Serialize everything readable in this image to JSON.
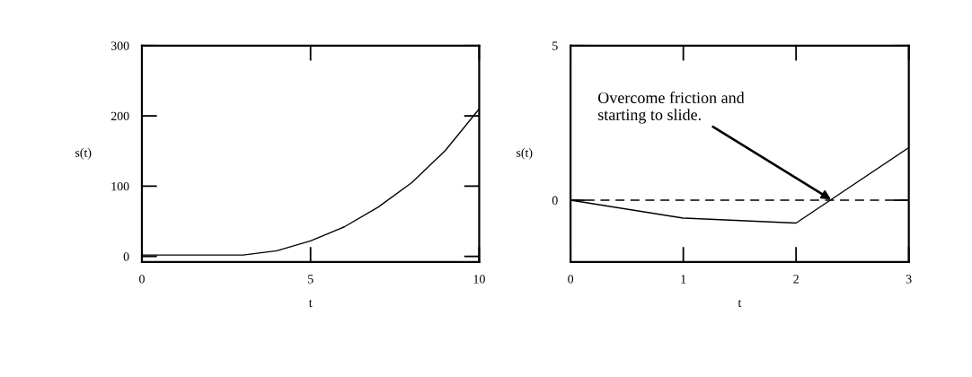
{
  "chart_data": [
    {
      "type": "line",
      "xlabel": "t",
      "ylabel": "s(t)",
      "x": [
        0,
        1,
        2,
        3,
        4,
        5,
        6,
        7,
        8,
        9,
        10
      ],
      "series": [
        {
          "color": "#000000",
          "values": [
            2,
            2,
            2,
            2,
            8,
            22,
            42,
            70,
            105,
            151,
            210
          ]
        }
      ],
      "xlim": [
        0,
        10
      ],
      "ylim": [
        -8,
        300
      ],
      "xticks": [
        0,
        5,
        10
      ],
      "yticks": [
        0,
        100,
        200,
        300
      ],
      "grid": false,
      "legend": false
    },
    {
      "type": "line",
      "xlabel": "t",
      "ylabel": "s(t)",
      "x": [
        0,
        1,
        2,
        3
      ],
      "series": [
        {
          "color": "#000000",
          "values": [
            0,
            -0.58,
            -0.74,
            1.7
          ]
        }
      ],
      "xlim": [
        0,
        3
      ],
      "ylim": [
        -2,
        5
      ],
      "xticks": [
        0,
        1,
        2,
        3
      ],
      "yticks": [
        0,
        5
      ],
      "grid": false,
      "legend": false,
      "ref_lines": [
        {
          "axis": "y",
          "value": 0,
          "line_style": "dashed",
          "color": "#000000"
        }
      ],
      "annotations": [
        {
          "text": "Overcome friction and\nstarting to slide.",
          "x": 2.32,
          "y": 0
        }
      ]
    }
  ]
}
